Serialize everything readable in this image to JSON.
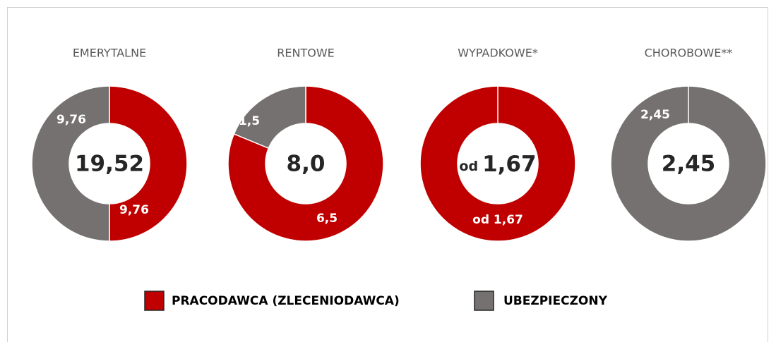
{
  "legend": {
    "items": [
      {
        "name": "PRACODAWCA (ZLECENIODAWCA)",
        "color": "#c00000"
      },
      {
        "name": "UBEZPIECZONY",
        "color": "#767171"
      }
    ]
  },
  "chart_data": [
    {
      "type": "pie",
      "title": "EMERYTALNE",
      "values": [
        9.76,
        9.76
      ],
      "value_labels": [
        "9,76",
        "9,76"
      ],
      "center_label": "19,52"
    },
    {
      "type": "pie",
      "title": "RENTOWE",
      "values": [
        6.5,
        1.5
      ],
      "value_labels": [
        "6,5",
        "1,5"
      ],
      "center_label": "8,0"
    },
    {
      "type": "pie",
      "title": "WYPADKOWE*",
      "values": [
        1.67,
        null
      ],
      "value_labels": [
        "od 1,67",
        null
      ],
      "center_prefix": "od",
      "center_label": "1,67"
    },
    {
      "type": "pie",
      "title": "CHOROBOWE**",
      "values": [
        null,
        2.45
      ],
      "value_labels": [
        null,
        "2,45"
      ],
      "center_label": "2,45"
    }
  ]
}
